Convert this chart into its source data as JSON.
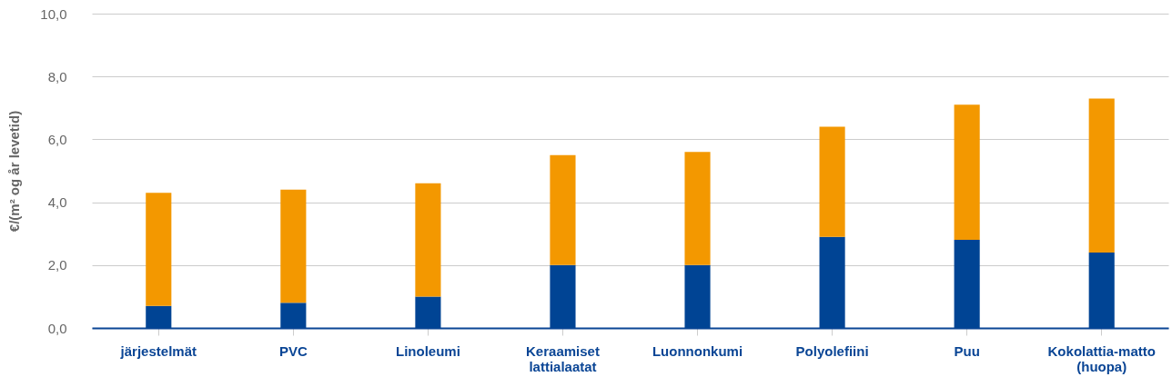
{
  "chart_data": {
    "type": "bar",
    "stacked": true,
    "ylabel": "€/(m² og år levetid)",
    "categories": [
      "järjestelmät",
      "PVC",
      "Linoleumi",
      "Keraamiset lattialaatat",
      "Luonnonkumi",
      "Polyolefiini",
      "Puu",
      "Kokolattia-matto (huopa)"
    ],
    "series": [
      {
        "color": "#004494",
        "values": [
          0.7,
          0.8,
          1.0,
          2.0,
          2.0,
          2.9,
          2.8,
          2.4
        ]
      },
      {
        "color": "#f39800",
        "values": [
          3.6,
          3.6,
          3.6,
          3.5,
          3.6,
          3.5,
          4.3,
          4.9
        ]
      }
    ],
    "ylim": [
      0,
      10
    ],
    "yticks": [
      {
        "value": 0,
        "label": "0,0"
      },
      {
        "value": 2,
        "label": "2,0"
      },
      {
        "value": 4,
        "label": "4,0"
      },
      {
        "value": 6,
        "label": "6,0"
      },
      {
        "value": 8,
        "label": "8,0"
      },
      {
        "value": 10,
        "label": "10,0"
      }
    ],
    "grid": "y",
    "legend": false
  }
}
